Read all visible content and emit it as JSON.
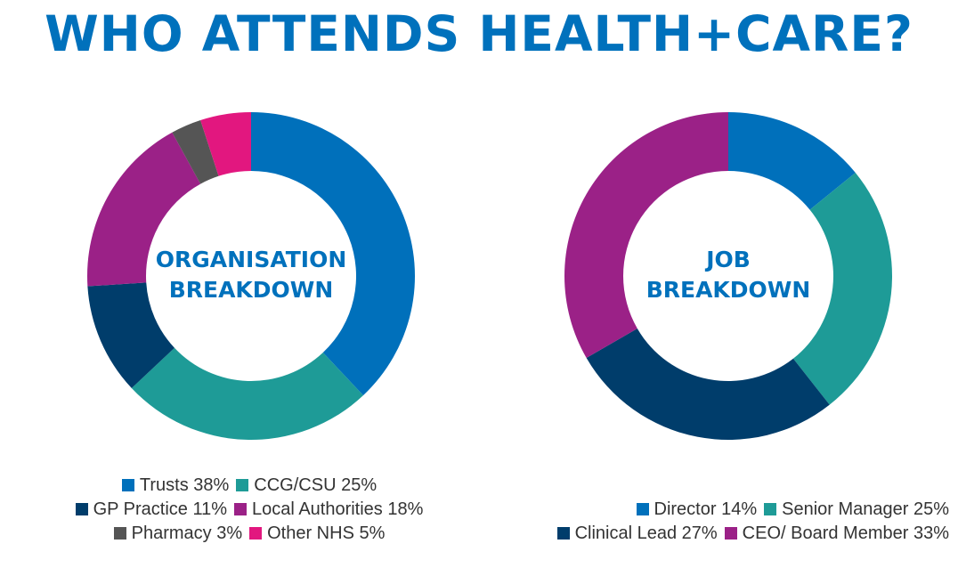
{
  "title": "WHO ATTENDS HEALTH+CARE?",
  "chart_data": [
    {
      "type": "pie",
      "center_label": [
        "ORGANISATION",
        "BREAKDOWN"
      ],
      "categories": [
        "Trusts",
        "CCG/CSU",
        "GP Practice",
        "Local Authorities",
        "Pharmacy",
        "Other NHS"
      ],
      "values": [
        38,
        25,
        11,
        18,
        3,
        5
      ],
      "unit": "%",
      "colors": [
        "#0070bb",
        "#1e9b97",
        "#003d6b",
        "#9b2187",
        "#555555",
        "#e2177f"
      ],
      "legend_labels": [
        "Trusts 38%",
        "CCG/CSU 25%",
        "GP Practice 11%",
        "Local Authorities 18%",
        "Pharmacy 3%",
        "Other NHS 5%"
      ],
      "legend_rows": [
        [
          0,
          1
        ],
        [
          2,
          3
        ],
        [
          4,
          5
        ]
      ],
      "legend_placement": "bottom"
    },
    {
      "type": "pie",
      "center_label": [
        "JOB",
        "BREAKDOWN"
      ],
      "categories": [
        "Director",
        "Senior Manager",
        "Clinical Lead",
        "CEO/ Board Member"
      ],
      "values": [
        14,
        25,
        27,
        33
      ],
      "unit": "%",
      "colors": [
        "#0070bb",
        "#1e9b97",
        "#003d6b",
        "#9b2187"
      ],
      "legend_labels": [
        "Director 14%",
        "Senior Manager 25%",
        "Clinical Lead 27%",
        "CEO/ Board Member 33%"
      ],
      "legend_rows": [
        [
          0,
          1
        ],
        [
          2,
          3
        ]
      ],
      "legend_placement": "bottom"
    }
  ]
}
